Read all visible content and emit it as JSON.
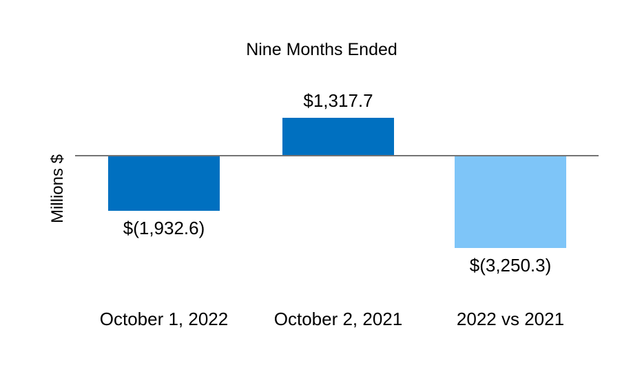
{
  "chart_data": {
    "type": "bar",
    "title": "Nine Months Ended",
    "ylabel": "Millions $",
    "xlabel": "",
    "categories": [
      "October 1, 2022",
      "October 2, 2021",
      "2022 vs 2021"
    ],
    "values": [
      -1932.6,
      1317.7,
      -3250.3
    ],
    "labels": [
      "$(1,932.6)",
      "$1,317.7",
      "$(3,250.3)"
    ],
    "bar_colors": [
      "#0070C0",
      "#0070C0",
      "#7EC5F8"
    ],
    "axis_line_color": "#737373",
    "text_color": "#000000",
    "background_color": "#FFFFFF",
    "ylim": [
      -3400,
      1500
    ],
    "baseline": 0,
    "grid": false,
    "legend_position": "none"
  }
}
